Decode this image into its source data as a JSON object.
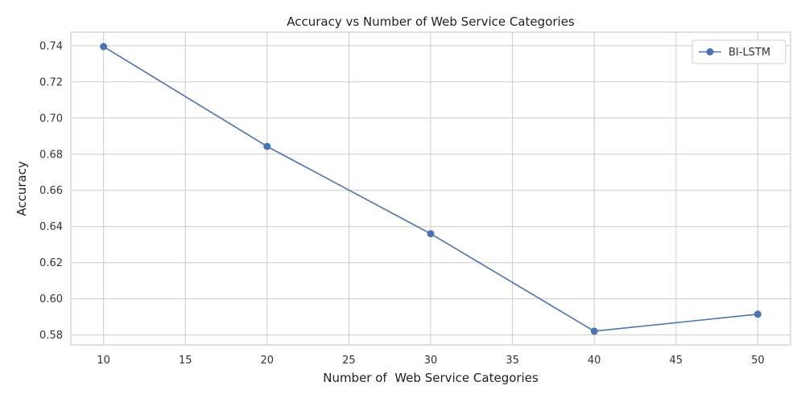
{
  "chart_data": {
    "type": "line",
    "title": "Accuracy vs Number of Web Service Categories",
    "xlabel": "Number of  Web Service Categories",
    "ylabel": "Accuracy",
    "x": [
      10,
      20,
      30,
      40,
      50
    ],
    "series": [
      {
        "name": "BI-LSTM",
        "values": [
          0.7395,
          0.6843,
          0.636,
          0.5821,
          0.5915
        ],
        "color": "#4c72b0",
        "marker": "circle"
      }
    ],
    "xlim": [
      8,
      52
    ],
    "ylim": [
      0.5745,
      0.7475
    ],
    "xticks": [
      10,
      15,
      20,
      25,
      30,
      35,
      40,
      45,
      50
    ],
    "yticks": [
      0.58,
      0.6,
      0.62,
      0.64,
      0.66,
      0.68,
      0.7,
      0.72,
      0.74
    ],
    "xtick_labels": [
      "10",
      "15",
      "20",
      "25",
      "30",
      "35",
      "40",
      "45",
      "50"
    ],
    "ytick_labels": [
      "0.58",
      "0.60",
      "0.62",
      "0.64",
      "0.66",
      "0.68",
      "0.70",
      "0.72",
      "0.74"
    ],
    "grid": true,
    "legend_position": "top-right",
    "grid_color": "#cccccc",
    "spine_color": "#cccccc"
  }
}
